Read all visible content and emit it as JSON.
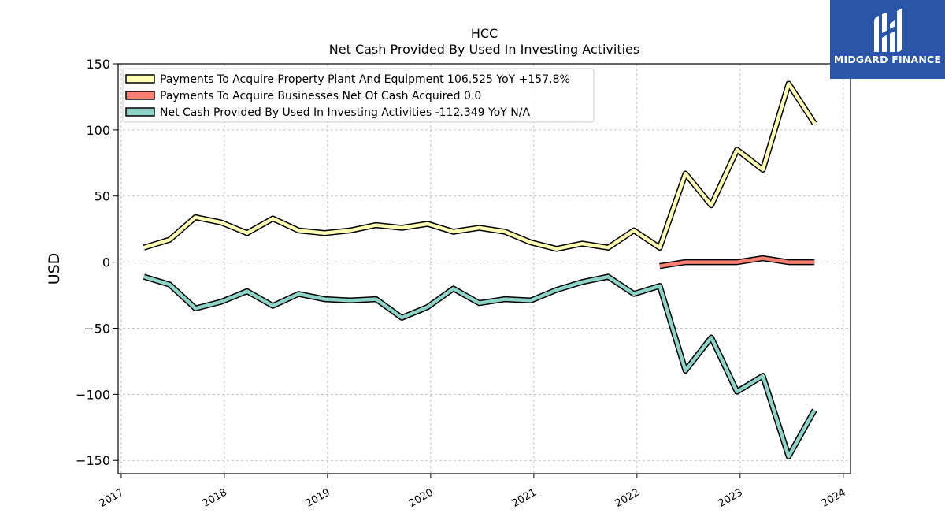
{
  "chart_data": {
    "type": "line",
    "title": [
      "HCC",
      "Net Cash Provided By Used In Investing Activities"
    ],
    "ylabel": "USD",
    "xlabel": "",
    "ylim": [
      -160,
      150
    ],
    "xlim": [
      2016.97,
      2024.07
    ],
    "yticks": [
      150,
      100,
      50,
      0,
      -50,
      -100,
      -150
    ],
    "ytick_labels": [
      "150",
      "100",
      "50",
      "0",
      "−50",
      "−100",
      "−150"
    ],
    "xticks": [
      2017,
      2018,
      2019,
      2020,
      2021,
      2022,
      2023,
      2024
    ],
    "xtick_labels": [
      "2017",
      "2018",
      "2019",
      "2020",
      "2021",
      "2022",
      "2023",
      "2024"
    ],
    "grid": true,
    "legend_position": "upper-left",
    "series": [
      {
        "name": "Payments To Acquire Property Plant And Equipment  106.525 YoY +157.8%",
        "color": "#ffffb3",
        "x": [
          2017.22,
          2017.47,
          2017.72,
          2017.97,
          2018.22,
          2018.47,
          2018.72,
          2018.97,
          2019.22,
          2019.47,
          2019.72,
          2019.97,
          2020.22,
          2020.47,
          2020.72,
          2020.97,
          2021.22,
          2021.47,
          2021.72,
          2021.97,
          2022.22,
          2022.47,
          2022.72,
          2022.97,
          2023.22,
          2023.47,
          2023.72
        ],
        "y": [
          11,
          17,
          34,
          30,
          22,
          33,
          24,
          22,
          24,
          28,
          26,
          29,
          23,
          26,
          23,
          15,
          10,
          14,
          11,
          24,
          11,
          67,
          43,
          85,
          70,
          135,
          105
        ]
      },
      {
        "name": "Payments To Acquire Businesses Net Of Cash Acquired  0.0",
        "color": "#fb8072",
        "x": [
          2022.22,
          2022.47,
          2022.72,
          2022.97,
          2023.22,
          2023.47,
          2023.72
        ],
        "y": [
          -3,
          0,
          0,
          0,
          3,
          0,
          0
        ]
      },
      {
        "name": "Net Cash Provided By Used In Investing Activities  -112.349 YoY N/A",
        "color": "#8dd3c7",
        "x": [
          2017.22,
          2017.47,
          2017.72,
          2017.97,
          2018.22,
          2018.47,
          2018.72,
          2018.97,
          2019.22,
          2019.47,
          2019.72,
          2019.97,
          2020.22,
          2020.47,
          2020.72,
          2020.97,
          2021.22,
          2021.47,
          2021.72,
          2021.97,
          2022.22,
          2022.47,
          2022.72,
          2022.97,
          2023.22,
          2023.47,
          2023.72
        ],
        "y": [
          -11,
          -17,
          -35,
          -30,
          -22,
          -33,
          -24,
          -28,
          -29,
          -28,
          -42,
          -34,
          -20,
          -31,
          -28,
          -29,
          -21,
          -15,
          -11,
          -24,
          -18,
          -82,
          -57,
          -98,
          -86,
          -147,
          -112
        ]
      }
    ]
  },
  "logo": {
    "text": "MIDGARD FINANCE",
    "color": "#2b56a8"
  }
}
